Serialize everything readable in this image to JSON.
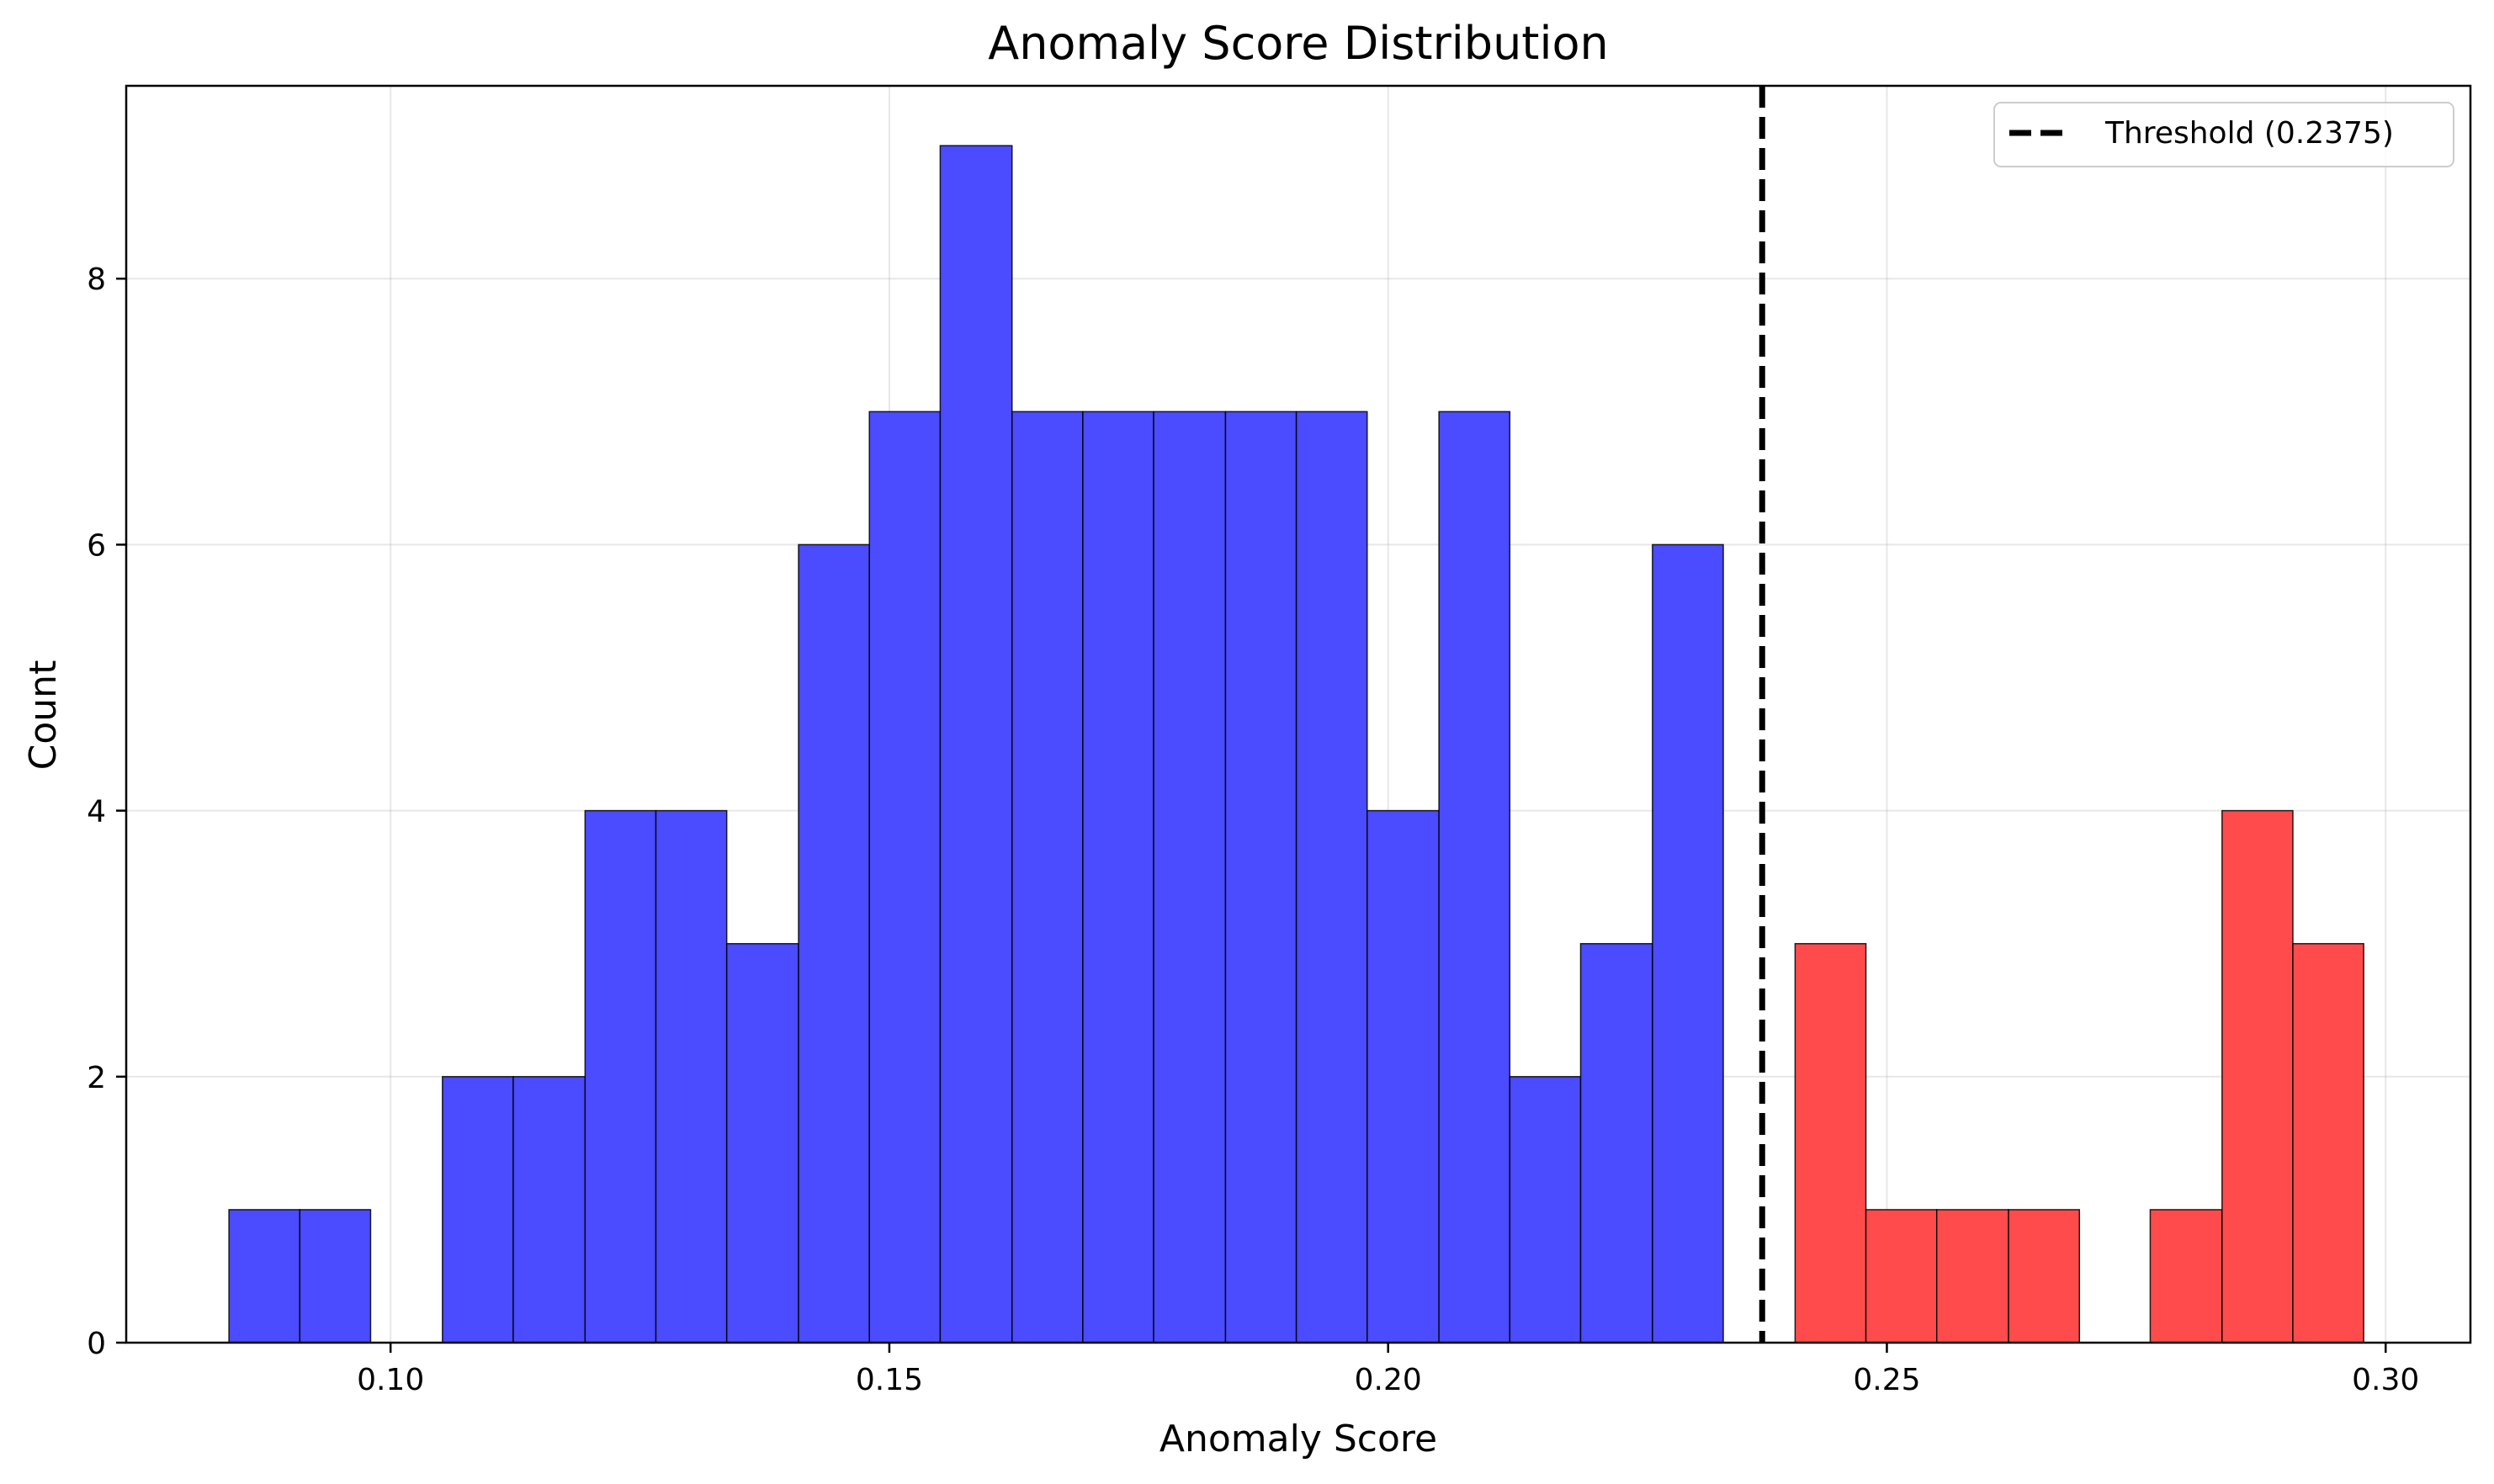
{
  "chart_data": {
    "type": "bar",
    "title": "Anomaly Score Distribution",
    "xlabel": "Anomaly Score",
    "ylabel": "Count",
    "xlim": [
      0.0735,
      0.3085
    ],
    "ylim": [
      0,
      9.45
    ],
    "xticks": [
      0.1,
      0.15,
      0.2,
      0.25,
      0.3
    ],
    "xtick_labels": [
      "0.10",
      "0.15",
      "0.20",
      "0.25",
      "0.30"
    ],
    "yticks": [
      0,
      2,
      4,
      6,
      8
    ],
    "ytick_labels": [
      "0",
      "2",
      "4",
      "6",
      "8"
    ],
    "grid": true,
    "legend_position": "top-right",
    "colors": {
      "normal": "#4b4bff",
      "anomaly": "#ff4b4b",
      "threshold": "#000000"
    },
    "threshold": {
      "value": 0.2375,
      "label": "Threshold (0.2375)",
      "style": "dashed"
    },
    "bins": [
      {
        "start": 0.0838,
        "end": 0.0909,
        "count": 1,
        "class": "normal"
      },
      {
        "start": 0.0909,
        "end": 0.098,
        "count": 1,
        "class": "normal"
      },
      {
        "start": 0.098,
        "end": 0.1052,
        "count": 0,
        "class": "normal"
      },
      {
        "start": 0.1052,
        "end": 0.1123,
        "count": 2,
        "class": "normal"
      },
      {
        "start": 0.1123,
        "end": 0.1195,
        "count": 2,
        "class": "normal"
      },
      {
        "start": 0.1195,
        "end": 0.1266,
        "count": 4,
        "class": "normal"
      },
      {
        "start": 0.1266,
        "end": 0.1337,
        "count": 4,
        "class": "normal"
      },
      {
        "start": 0.1337,
        "end": 0.1409,
        "count": 3,
        "class": "normal"
      },
      {
        "start": 0.1409,
        "end": 0.148,
        "count": 6,
        "class": "normal"
      },
      {
        "start": 0.148,
        "end": 0.1551,
        "count": 7,
        "class": "normal"
      },
      {
        "start": 0.1551,
        "end": 0.1623,
        "count": 9,
        "class": "normal"
      },
      {
        "start": 0.1623,
        "end": 0.1694,
        "count": 7,
        "class": "normal"
      },
      {
        "start": 0.1694,
        "end": 0.1765,
        "count": 7,
        "class": "normal"
      },
      {
        "start": 0.1765,
        "end": 0.1837,
        "count": 7,
        "class": "normal"
      },
      {
        "start": 0.1837,
        "end": 0.1908,
        "count": 7,
        "class": "normal"
      },
      {
        "start": 0.1908,
        "end": 0.1979,
        "count": 7,
        "class": "normal"
      },
      {
        "start": 0.1979,
        "end": 0.2051,
        "count": 4,
        "class": "normal"
      },
      {
        "start": 0.2051,
        "end": 0.2122,
        "count": 7,
        "class": "normal"
      },
      {
        "start": 0.2122,
        "end": 0.2193,
        "count": 2,
        "class": "normal"
      },
      {
        "start": 0.2193,
        "end": 0.2265,
        "count": 3,
        "class": "normal"
      },
      {
        "start": 0.2265,
        "end": 0.2336,
        "count": 6,
        "class": "normal"
      },
      {
        "start": 0.2408,
        "end": 0.2479,
        "count": 3,
        "class": "anomaly"
      },
      {
        "start": 0.2479,
        "end": 0.255,
        "count": 1,
        "class": "anomaly"
      },
      {
        "start": 0.255,
        "end": 0.2622,
        "count": 1,
        "class": "anomaly"
      },
      {
        "start": 0.2622,
        "end": 0.2693,
        "count": 1,
        "class": "anomaly"
      },
      {
        "start": 0.2764,
        "end": 0.2836,
        "count": 1,
        "class": "anomaly"
      },
      {
        "start": 0.2836,
        "end": 0.2907,
        "count": 4,
        "class": "anomaly"
      },
      {
        "start": 0.2907,
        "end": 0.2978,
        "count": 3,
        "class": "anomaly"
      }
    ]
  }
}
